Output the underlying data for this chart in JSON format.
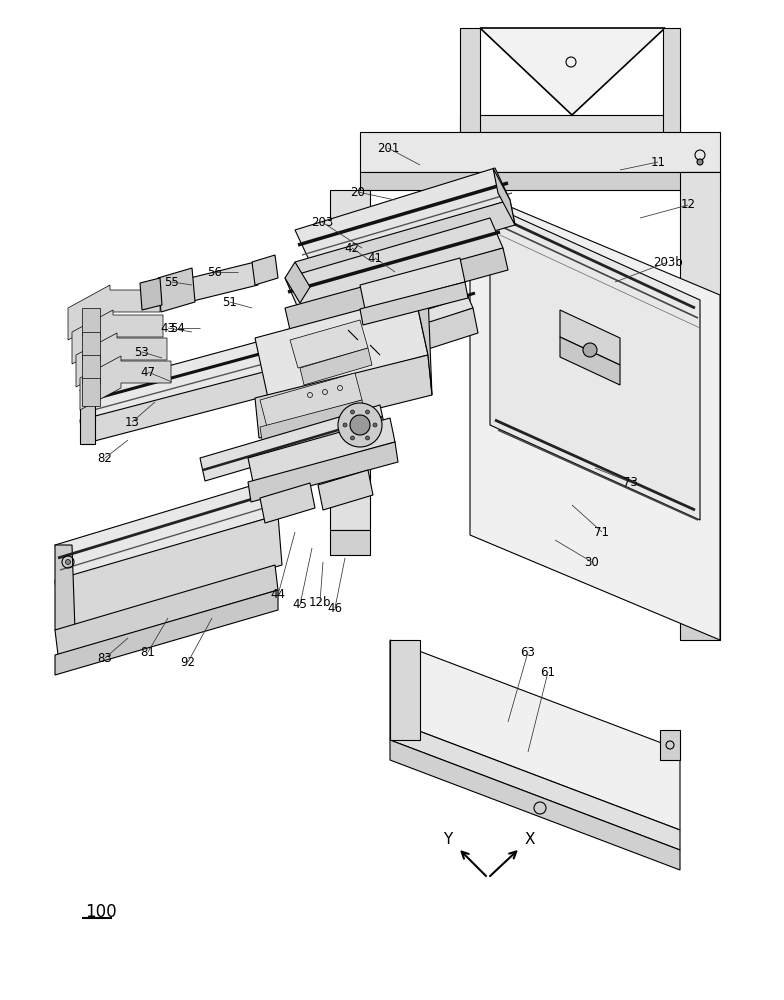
{
  "bg_color": "#ffffff",
  "line_color": "#000000",
  "figure_number": "100",
  "labels": [
    [
      "11",
      658,
      162
    ],
    [
      "12",
      688,
      205
    ],
    [
      "20",
      358,
      192
    ],
    [
      "201",
      388,
      148
    ],
    [
      "203",
      322,
      222
    ],
    [
      "203b",
      668,
      262
    ],
    [
      "41",
      375,
      258
    ],
    [
      "42",
      352,
      248
    ],
    [
      "43",
      168,
      328
    ],
    [
      "44",
      278,
      595
    ],
    [
      "45",
      300,
      605
    ],
    [
      "46",
      335,
      608
    ],
    [
      "47",
      148,
      372
    ],
    [
      "51",
      230,
      302
    ],
    [
      "53",
      142,
      352
    ],
    [
      "54",
      178,
      328
    ],
    [
      "55",
      172,
      282
    ],
    [
      "56",
      215,
      272
    ],
    [
      "13",
      132,
      422
    ],
    [
      "30",
      592,
      562
    ],
    [
      "61",
      548,
      672
    ],
    [
      "63",
      528,
      652
    ],
    [
      "71",
      602,
      532
    ],
    [
      "73",
      630,
      482
    ],
    [
      "82",
      105,
      458
    ],
    [
      "81",
      148,
      652
    ],
    [
      "83",
      105,
      658
    ],
    [
      "92",
      188,
      662
    ],
    [
      "12b",
      320,
      602
    ]
  ]
}
